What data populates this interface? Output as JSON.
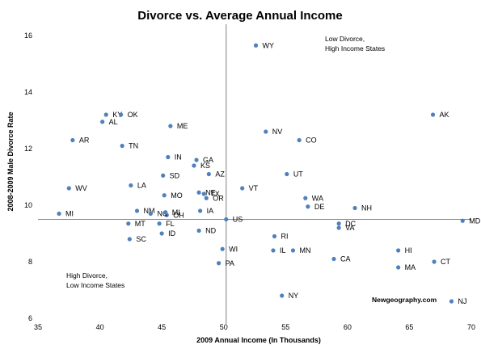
{
  "chart_data": {
    "type": "scatter",
    "title": "Divorce vs. Average Annual Income",
    "xlabel": "2009 Annual Income (In Thousands)",
    "ylabel": "2008-2009 Male Divorce Rate",
    "xlim": [
      35,
      70
    ],
    "ylim": [
      16.4,
      5.8
    ],
    "y_inverted": true,
    "x_ticks": [
      35,
      40,
      45,
      50,
      55,
      60,
      65,
      70
    ],
    "y_ticks": [
      6,
      8,
      10,
      12,
      14,
      16
    ],
    "reference_lines": {
      "x": 50.2,
      "y": 9.5
    },
    "grid": false,
    "marker_color": "#4f81bd",
    "points": [
      {
        "label": "NJ",
        "x": 68.4,
        "y": 6.6
      },
      {
        "label": "NY",
        "x": 54.7,
        "y": 6.8
      },
      {
        "label": "MA",
        "x": 64.1,
        "y": 7.8
      },
      {
        "label": "CT",
        "x": 67.0,
        "y": 8.0
      },
      {
        "label": "PA",
        "x": 49.6,
        "y": 7.95
      },
      {
        "label": "CA",
        "x": 58.9,
        "y": 8.1
      },
      {
        "label": "IL",
        "x": 54.0,
        "y": 8.4
      },
      {
        "label": "MN",
        "x": 55.6,
        "y": 8.4
      },
      {
        "label": "HI",
        "x": 64.1,
        "y": 8.4
      },
      {
        "label": "WI",
        "x": 49.9,
        "y": 8.45
      },
      {
        "label": "SC",
        "x": 42.4,
        "y": 8.8
      },
      {
        "label": "RI",
        "x": 54.1,
        "y": 8.9
      },
      {
        "label": "ID",
        "x": 45.0,
        "y": 9.0
      },
      {
        "label": "ND",
        "x": 48.0,
        "y": 9.1
      },
      {
        "label": "VA",
        "x": 59.3,
        "y": 9.2
      },
      {
        "label": "DC",
        "x": 59.3,
        "y": 9.35
      },
      {
        "label": "MT",
        "x": 42.3,
        "y": 9.35
      },
      {
        "label": "FL",
        "x": 44.8,
        "y": 9.35
      },
      {
        "label": "MD",
        "x": 69.3,
        "y": 9.45
      },
      {
        "label": "US",
        "x": 50.2,
        "y": 9.5
      },
      {
        "label": "OH",
        "x": 45.4,
        "y": 9.65
      },
      {
        "label": "MI",
        "x": 36.7,
        "y": 9.7
      },
      {
        "label": "NM",
        "x": 43.0,
        "y": 9.8
      },
      {
        "label": "NC",
        "x": 44.1,
        "y": 9.7
      },
      {
        "label": "MI",
        "x": 45.3,
        "y": 9.75
      },
      {
        "label": "IA",
        "x": 48.1,
        "y": 9.8
      },
      {
        "label": "NH",
        "x": 60.6,
        "y": 9.9
      },
      {
        "label": "DE",
        "x": 56.8,
        "y": 9.95
      },
      {
        "label": "OR",
        "x": 48.6,
        "y": 10.25
      },
      {
        "label": "WA",
        "x": 56.6,
        "y": 10.25
      },
      {
        "label": "MO",
        "x": 45.2,
        "y": 10.35
      },
      {
        "label": "NE",
        "x": 48.0,
        "y": 10.45
      },
      {
        "label": "TX",
        "x": 48.4,
        "y": 10.4
      },
      {
        "label": "WV",
        "x": 37.5,
        "y": 10.6
      },
      {
        "label": "VT",
        "x": 51.5,
        "y": 10.6
      },
      {
        "label": "LA",
        "x": 42.5,
        "y": 10.7
      },
      {
        "label": "SD",
        "x": 45.1,
        "y": 11.05
      },
      {
        "label": "AZ",
        "x": 48.8,
        "y": 11.1
      },
      {
        "label": "UT",
        "x": 55.1,
        "y": 11.1
      },
      {
        "label": "KS",
        "x": 47.6,
        "y": 11.4
      },
      {
        "label": "GA",
        "x": 47.8,
        "y": 11.6
      },
      {
        "label": "IN",
        "x": 45.5,
        "y": 11.7
      },
      {
        "label": "TN",
        "x": 41.8,
        "y": 12.1
      },
      {
        "label": "AR",
        "x": 37.8,
        "y": 12.3
      },
      {
        "label": "CO",
        "x": 56.1,
        "y": 12.3
      },
      {
        "label": "NV",
        "x": 53.4,
        "y": 12.6
      },
      {
        "label": "ME",
        "x": 45.7,
        "y": 12.8
      },
      {
        "label": "AL",
        "x": 40.2,
        "y": 12.95
      },
      {
        "label": "KY",
        "x": 40.5,
        "y": 13.2
      },
      {
        "label": "OK",
        "x": 41.7,
        "y": 13.2
      },
      {
        "label": "AK",
        "x": 66.9,
        "y": 13.2
      },
      {
        "label": "WY",
        "x": 52.6,
        "y": 15.65
      }
    ],
    "annotations": {
      "low_divorce_line1": "Low Divorce,",
      "low_divorce_line2": "High Income States",
      "high_divorce_line1": "High Divorce,",
      "high_divorce_line2": "Low Income States",
      "credit": "Newgeography.com"
    }
  }
}
